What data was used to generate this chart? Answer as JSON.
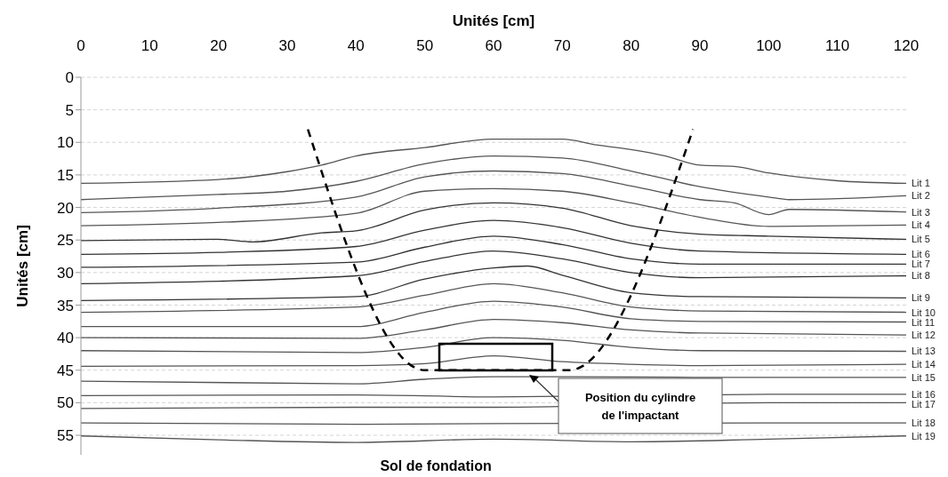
{
  "chart_data": {
    "type": "line",
    "xlabel": "Unités [cm]",
    "ylabel": "Unités [cm]",
    "annotations": [
      "Sol de fondation",
      "Position du cylindre de l'impactant"
    ],
    "xlim": [
      0,
      120
    ],
    "xticks": [
      0,
      10,
      20,
      30,
      40,
      50,
      60,
      70,
      80,
      90,
      100,
      110,
      120
    ],
    "ylim": [
      58,
      0
    ],
    "yticks": [
      0,
      5,
      10,
      15,
      20,
      25,
      30,
      35,
      40,
      45,
      50,
      55
    ],
    "grid": "y",
    "legend": false,
    "marker": "none",
    "series": [
      {
        "name": "Lit 1",
        "color": "#555555",
        "x": [
          0,
          20,
          30,
          35,
          40,
          50,
          60,
          70,
          75,
          80,
          85,
          90,
          95,
          100,
          110,
          120
        ],
        "values": [
          16.3,
          15.7,
          14.5,
          13.5,
          12.1,
          10.8,
          9.5,
          9.5,
          10.4,
          11.1,
          12.1,
          13.5,
          13.7,
          14.7,
          15.9,
          16.3
        ]
      },
      {
        "name": "Lit 2",
        "color": "#555555",
        "x": [
          0,
          20,
          30,
          40,
          50,
          60,
          70,
          80,
          90,
          100,
          103,
          120
        ],
        "values": [
          18.8,
          18,
          17.5,
          16,
          13.3,
          12.1,
          12.4,
          14.4,
          16.8,
          18.4,
          18.8,
          18.2
        ]
      },
      {
        "name": "Lit 3",
        "color": "#555555",
        "x": [
          0,
          20,
          40,
          50,
          60,
          70,
          80,
          90,
          95,
          100,
          103,
          120
        ],
        "values": [
          20.8,
          20.1,
          18.4,
          15.3,
          14.4,
          14.8,
          16.7,
          18.8,
          19.3,
          21.1,
          20.3,
          20.7
        ]
      },
      {
        "name": "Lit 4",
        "color": "#555555",
        "x": [
          0,
          20,
          40,
          50,
          60,
          70,
          80,
          90,
          100,
          120
        ],
        "values": [
          22.8,
          22.3,
          20.9,
          17.5,
          17.1,
          17.5,
          19.3,
          21.5,
          22.9,
          22.7
        ]
      },
      {
        "name": "Lit 5",
        "color": "#333333",
        "x": [
          0,
          20,
          25,
          35,
          40,
          50,
          60,
          70,
          80,
          90,
          100,
          120
        ],
        "values": [
          25.1,
          24.9,
          25.3,
          23.9,
          23.6,
          20.4,
          19.3,
          20.1,
          22.8,
          24.1,
          24.4,
          24.9
        ]
      },
      {
        "name": "Lit 6",
        "color": "#333333",
        "x": [
          0,
          20,
          40,
          50,
          60,
          70,
          80,
          90,
          120
        ],
        "values": [
          27.2,
          26.9,
          26,
          23.5,
          22,
          23.1,
          25.5,
          26.7,
          27.2
        ]
      },
      {
        "name": "Lit 7",
        "color": "#333333",
        "x": [
          0,
          40,
          50,
          60,
          70,
          80,
          90,
          120
        ],
        "values": [
          29.2,
          28.4,
          26.1,
          24.4,
          25.7,
          27.9,
          28.7,
          28.7
        ]
      },
      {
        "name": "Lit 8",
        "color": "#333333",
        "x": [
          0,
          40,
          50,
          60,
          70,
          80,
          90,
          120
        ],
        "values": [
          31.7,
          30.5,
          28.3,
          26.7,
          27.9,
          30,
          30.8,
          30.5
        ]
      },
      {
        "name": "Lit 9",
        "color": "#333333",
        "x": [
          0,
          40,
          50,
          60,
          65,
          70,
          80,
          90,
          120
        ],
        "values": [
          34.3,
          33.7,
          31,
          29.3,
          29,
          30.4,
          33.1,
          33.7,
          33.9
        ]
      },
      {
        "name": "Lit 10",
        "color": "#555555",
        "x": [
          0,
          40,
          50,
          60,
          70,
          80,
          90,
          120
        ],
        "values": [
          36.1,
          35.3,
          33.5,
          31.7,
          33.1,
          35.3,
          35.9,
          36.1
        ]
      },
      {
        "name": "Lit 11",
        "color": "#555555",
        "x": [
          0,
          40,
          50,
          60,
          70,
          80,
          90,
          120
        ],
        "values": [
          38.3,
          38.3,
          36.1,
          34.4,
          35.3,
          37.1,
          37.5,
          37.6
        ]
      },
      {
        "name": "Lit 12",
        "color": "#555555",
        "x": [
          0,
          40,
          50,
          60,
          70,
          80,
          90,
          120
        ],
        "values": [
          40,
          40.1,
          38.8,
          37.2,
          37.7,
          38.8,
          39.3,
          39.6
        ]
      },
      {
        "name": "Lit 13",
        "color": "#555555",
        "x": [
          0,
          40,
          50,
          60,
          70,
          80,
          90,
          120
        ],
        "values": [
          42,
          42.3,
          41.5,
          40,
          40.4,
          41.5,
          42,
          42.1
        ]
      },
      {
        "name": "Lit 14",
        "color": "#555555",
        "x": [
          0,
          40,
          50,
          60,
          70,
          80,
          90,
          120
        ],
        "values": [
          44.4,
          44.3,
          44,
          42.8,
          43.7,
          44.1,
          44.3,
          44.1
        ]
      },
      {
        "name": "Lit 15",
        "color": "#555555",
        "x": [
          0,
          40,
          50,
          60,
          70,
          90,
          120
        ],
        "values": [
          46.7,
          47.1,
          46.4,
          46,
          46,
          46.1,
          46.1
        ]
      },
      {
        "name": "Lit 16",
        "color": "#555555",
        "x": [
          0,
          40,
          60,
          100,
          120
        ],
        "values": [
          48.9,
          48.8,
          49.1,
          48.7,
          48.7
        ]
      },
      {
        "name": "Lit 17",
        "color": "#555555",
        "x": [
          0,
          40,
          60,
          100,
          120
        ],
        "values": [
          50.9,
          50.7,
          50.7,
          50,
          50
        ]
      },
      {
        "name": "Lit 18",
        "color": "#555555",
        "x": [
          0,
          40,
          60,
          100,
          120
        ],
        "values": [
          53.1,
          53.3,
          53.2,
          53.1,
          53.1
        ]
      },
      {
        "name": "Lit 19",
        "color": "#555555",
        "x": [
          0,
          20,
          40,
          60,
          80,
          100,
          120
        ],
        "values": [
          55.1,
          55.7,
          56.1,
          55.6,
          56,
          55.6,
          55.1
        ]
      },
      {
        "color": "#000000",
        "line_style": "dashed",
        "x": [
          33,
          50,
          71,
          89
        ],
        "values": [
          8,
          45,
          45,
          8
        ]
      }
    ]
  }
}
